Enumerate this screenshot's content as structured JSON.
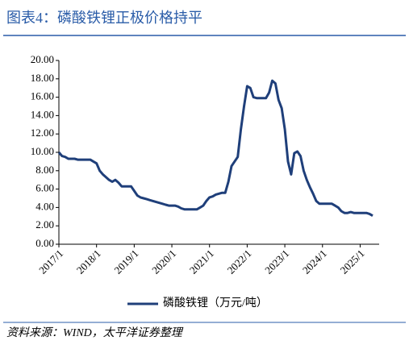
{
  "chart_data": {
    "type": "line",
    "title": "图表4：磷酸铁锂正极价格持平",
    "source": "资料来源：WIND，太平洋证券整理",
    "x": [
      "2017/1",
      "2017/2",
      "2017/3",
      "2017/4",
      "2017/5",
      "2017/6",
      "2017/7",
      "2017/8",
      "2017/9",
      "2017/10",
      "2017/11",
      "2017/12",
      "2018/1",
      "2018/2",
      "2018/3",
      "2018/4",
      "2018/5",
      "2018/6",
      "2018/7",
      "2018/8",
      "2018/9",
      "2018/10",
      "2018/11",
      "2018/12",
      "2019/1",
      "2019/2",
      "2019/3",
      "2019/4",
      "2019/5",
      "2019/6",
      "2019/7",
      "2019/8",
      "2019/9",
      "2019/10",
      "2019/11",
      "2019/12",
      "2020/1",
      "2020/2",
      "2020/3",
      "2020/4",
      "2020/5",
      "2020/6",
      "2020/7",
      "2020/8",
      "2020/9",
      "2020/10",
      "2020/11",
      "2020/12",
      "2021/1",
      "2021/2",
      "2021/3",
      "2021/4",
      "2021/5",
      "2021/6",
      "2021/7",
      "2021/8",
      "2021/9",
      "2021/10",
      "2021/11",
      "2021/12",
      "2022/1",
      "2022/2",
      "2022/3",
      "2022/4",
      "2022/5",
      "2022/6",
      "2022/7",
      "2022/8",
      "2022/9",
      "2022/10",
      "2022/11",
      "2022/12",
      "2023/1",
      "2023/2",
      "2023/3",
      "2023/4",
      "2023/5",
      "2023/6",
      "2023/7",
      "2023/8",
      "2023/9",
      "2023/10",
      "2023/11",
      "2023/12",
      "2024/1",
      "2024/2",
      "2024/3",
      "2024/4",
      "2024/5",
      "2024/6",
      "2024/7",
      "2024/8",
      "2024/9",
      "2024/10",
      "2024/11",
      "2024/12",
      "2025/1",
      "2025/2",
      "2025/3",
      "2025/4",
      "2025/5"
    ],
    "series": [
      {
        "name": "磷酸铁锂（万元/吨）",
        "color": "#1f3f7a",
        "values": [
          10.0,
          9.6,
          9.5,
          9.3,
          9.3,
          9.3,
          9.2,
          9.2,
          9.2,
          9.2,
          9.2,
          9.0,
          8.8,
          8.0,
          7.6,
          7.3,
          7.0,
          6.8,
          7.0,
          6.7,
          6.3,
          6.3,
          6.3,
          6.3,
          5.8,
          5.3,
          5.1,
          5.0,
          4.9,
          4.8,
          4.7,
          4.6,
          4.5,
          4.4,
          4.3,
          4.2,
          4.2,
          4.2,
          4.1,
          3.9,
          3.8,
          3.8,
          3.8,
          3.8,
          3.8,
          4.0,
          4.2,
          4.7,
          5.1,
          5.2,
          5.4,
          5.5,
          5.6,
          5.6,
          6.8,
          8.5,
          9.0,
          9.5,
          12.5,
          15.0,
          17.2,
          17.0,
          16.0,
          15.9,
          15.9,
          15.9,
          15.9,
          16.5,
          17.8,
          17.5,
          15.7,
          14.8,
          12.5,
          9.0,
          7.6,
          9.9,
          10.1,
          9.6,
          8.0,
          7.0,
          6.2,
          5.5,
          4.7,
          4.4,
          4.4,
          4.4,
          4.4,
          4.4,
          4.2,
          4.0,
          3.6,
          3.4,
          3.4,
          3.5,
          3.4,
          3.4,
          3.4,
          3.4,
          3.4,
          3.3,
          3.1
        ]
      }
    ],
    "xticks": [
      "2017/1",
      "2018/1",
      "2019/1",
      "2020/1",
      "2021/1",
      "2022/1",
      "2023/1",
      "2024/1",
      "2025/1"
    ],
    "ylim": [
      0,
      20
    ],
    "yticks": [
      {
        "value": 0,
        "label": "0.00"
      },
      {
        "value": 2,
        "label": "2.00"
      },
      {
        "value": 4,
        "label": "4.00"
      },
      {
        "value": 6,
        "label": "6.00"
      },
      {
        "value": 8,
        "label": "8.00"
      },
      {
        "value": 10,
        "label": "10.00"
      },
      {
        "value": 12,
        "label": "12.00"
      },
      {
        "value": 14,
        "label": "14.00"
      },
      {
        "value": 16,
        "label": "16.00"
      },
      {
        "value": 18,
        "label": "18.00"
      },
      {
        "value": 20,
        "label": "20.00"
      }
    ],
    "grid": false,
    "legend": "bottom"
  }
}
